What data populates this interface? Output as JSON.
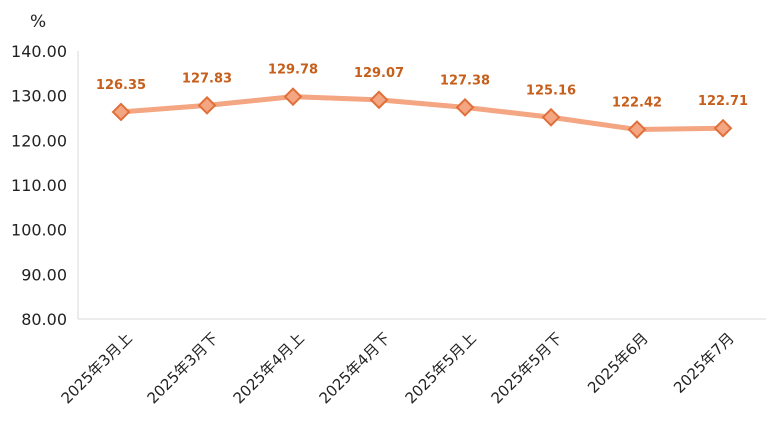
{
  "chart_data": {
    "type": "line",
    "categories": [
      "2025年3月上",
      "2025年3月下",
      "2025年4月上",
      "2025年4月下",
      "2025年5月上",
      "2025年5月下",
      "2025年6月",
      "2025年7月"
    ],
    "series": [
      {
        "values": [
          126.35,
          127.83,
          129.78,
          129.07,
          127.38,
          125.16,
          122.42,
          122.71
        ],
        "color": "#f4a582",
        "marker_color": "#f4a582",
        "marker_edge": "#e0703a"
      }
    ],
    "data_labels": [
      "126.35",
      "127.83",
      "129.78",
      "129.07",
      "127.38",
      "125.16",
      "122.42",
      "122.71"
    ],
    "ylabel": "%",
    "ylim": [
      80,
      140
    ],
    "yticks": [
      "80.00",
      "90.00",
      "100.00",
      "110.00",
      "120.00",
      "130.00",
      "140.00"
    ],
    "grid": false,
    "label_color": "#c65f1c",
    "axis_color": "#d9d9d9"
  }
}
